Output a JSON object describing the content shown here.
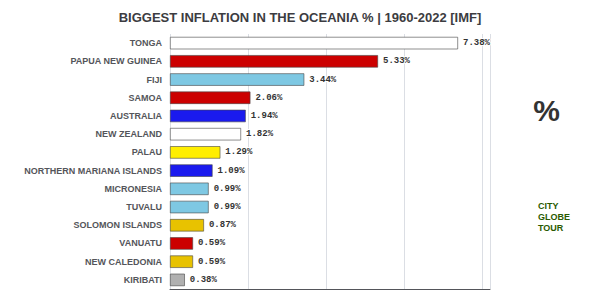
{
  "chart_data": {
    "type": "bar",
    "orientation": "horizontal",
    "title": "BIGGEST INFLATION IN THE OCEANIA % | 1960-2022 [IMF]",
    "categories": [
      "TONGA",
      "PAPUA NEW GUINEA",
      "FIJI",
      "SAMOA",
      "AUSTRALIA",
      "NEW ZEALAND",
      "PALAU",
      "NORTHERN MARIANA ISLANDS",
      "MICRONESIA",
      "TUVALU",
      "SOLOMON ISLANDS",
      "VANUATU",
      "NEW CALEDONIA",
      "KIRIBATI"
    ],
    "values": [
      7.38,
      5.33,
      3.44,
      2.06,
      1.94,
      1.82,
      1.29,
      1.09,
      0.99,
      0.99,
      0.87,
      0.59,
      0.59,
      0.38
    ],
    "value_labels": [
      "7.38%",
      "5.33%",
      "3.44%",
      "2.06%",
      "1.94%",
      "1.82%",
      "1.29%",
      "1.09%",
      "0.99%",
      "0.99%",
      "0.87%",
      "0.59%",
      "0.59%",
      "0.38%"
    ],
    "colors": [
      "#ffffff",
      "#cc0000",
      "#7ec8e3",
      "#cc0000",
      "#1a1aee",
      "#ffffff",
      "#ffee00",
      "#1a1aee",
      "#7ec8e3",
      "#7ec8e3",
      "#e8c200",
      "#cc0000",
      "#e8c200",
      "#b0b0b0"
    ],
    "xlim": [
      0,
      8.2
    ],
    "xticks": [
      0,
      2,
      4,
      6,
      8
    ],
    "grid": true,
    "tick_labels": "y",
    "data_labels": true,
    "annotations": [
      "%",
      "CITY\nGLOBE\nTOUR"
    ]
  }
}
